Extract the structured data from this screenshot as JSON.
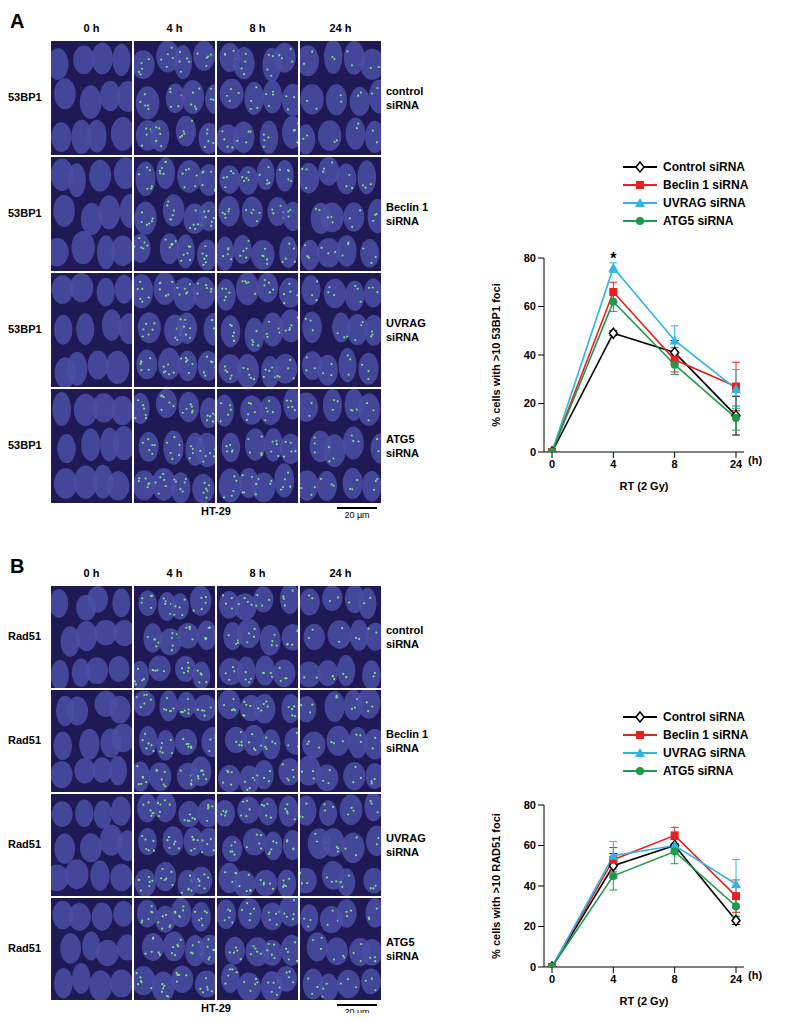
{
  "figure": {
    "panels": [
      {
        "label": "A",
        "columns": [
          "0 h",
          "4 h",
          "8 h",
          "24 h"
        ],
        "rows": [
          {
            "stain": "53BP1",
            "condition": "control\nsiRNA"
          },
          {
            "stain": "53BP1",
            "condition": "Beclin 1\nsiRNA"
          },
          {
            "stain": "53BP1",
            "condition": "UVRAG\nsiRNA"
          },
          {
            "stain": "53BP1",
            "condition": "ATG5\nsiRNA"
          }
        ],
        "cell_line": "HT-29",
        "scale_bar": "20 µm"
      },
      {
        "label": "B",
        "columns": [
          "0 h",
          "4 h",
          "8 h",
          "24 h"
        ],
        "rows": [
          {
            "stain": "Rad51",
            "condition": "control\nsiRNA"
          },
          {
            "stain": "Rad51",
            "condition": "Beclin 1\nsiRNA"
          },
          {
            "stain": "Rad51",
            "condition": "UVRAG\nsiRNA"
          },
          {
            "stain": "Rad51",
            "condition": "ATG5\nsiRNA"
          }
        ],
        "cell_line": "HT-29",
        "scale_bar": "20 µm"
      }
    ]
  },
  "chart_data": [
    {
      "type": "line",
      "categories": [
        "0",
        "4",
        "8",
        "24"
      ],
      "xlabel": "RT (2  Gy)",
      "x_unit": "(h)",
      "ylabel": "% cells with >10 53BP1 foci",
      "ylim": [
        0,
        80
      ],
      "yticks": [
        0,
        20,
        40,
        60,
        80
      ],
      "legend": "top right",
      "series": [
        {
          "name": "Control siRNA",
          "color": "#000000",
          "marker": "diamond",
          "values": [
            0,
            49,
            41,
            15
          ],
          "errors": [
            0,
            1,
            5,
            8
          ]
        },
        {
          "name": "Beclin 1 siRNA",
          "color": "#e8201e",
          "marker": "square",
          "values": [
            0,
            66,
            38,
            27
          ],
          "errors": [
            0,
            4,
            5,
            10
          ]
        },
        {
          "name": "UVRAG siRNA",
          "color": "#2fb4e6",
          "marker": "triangle",
          "values": [
            0,
            76,
            46,
            26
          ],
          "errors": [
            0,
            2,
            6,
            8
          ]
        },
        {
          "name": "ATG5 siRNA",
          "color": "#1e9a4a",
          "marker": "circle",
          "values": [
            0,
            62,
            36,
            14
          ],
          "errors": [
            0,
            4,
            4,
            5
          ]
        }
      ],
      "annotations": [
        {
          "text": "*",
          "x": "4",
          "y": 80
        }
      ]
    },
    {
      "type": "line",
      "categories": [
        "0",
        "4",
        "8",
        "24"
      ],
      "xlabel": "RT (2  Gy)",
      "x_unit": "(h)",
      "ylabel": "% cells with >10 RAD51 foci",
      "ylim": [
        0,
        80
      ],
      "yticks": [
        0,
        20,
        40,
        60,
        80
      ],
      "legend": "top right",
      "series": [
        {
          "name": "Control siRNA",
          "color": "#000000",
          "marker": "diamond",
          "values": [
            0,
            50,
            60,
            23
          ],
          "errors": [
            0,
            6,
            3,
            2
          ]
        },
        {
          "name": "Beclin 1 siRNA",
          "color": "#e8201e",
          "marker": "square",
          "values": [
            0,
            53,
            65,
            35
          ],
          "errors": [
            0,
            6,
            4,
            8
          ]
        },
        {
          "name": "UVRAG siRNA",
          "color": "#2fb4e6",
          "marker": "triangle",
          "values": [
            0,
            55,
            60,
            41
          ],
          "errors": [
            0,
            7,
            4,
            12
          ]
        },
        {
          "name": "ATG5 siRNA",
          "color": "#1e9a4a",
          "marker": "circle",
          "values": [
            0,
            45,
            57,
            30
          ],
          "errors": [
            0,
            7,
            6,
            5
          ]
        }
      ],
      "annotations": []
    }
  ]
}
